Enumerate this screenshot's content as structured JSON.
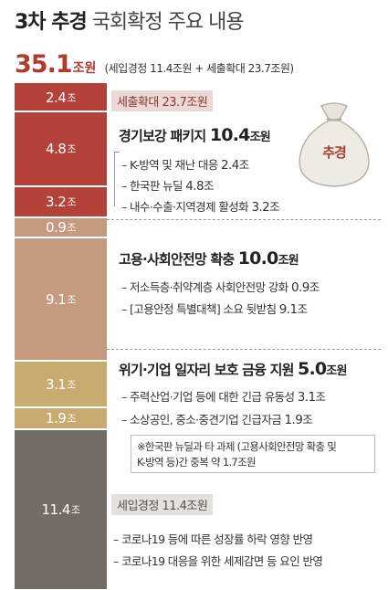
{
  "title": {
    "bold": "3차 추경",
    "light": "국회확정 주요 내용"
  },
  "total": {
    "value_int": "35.",
    "value_dec": "1",
    "unit": "조원",
    "detail": "(세입경정 11.4조원 + 세출확대 23.7조원)"
  },
  "colors": {
    "red": "#b03a2e",
    "tan": "#c9a27c",
    "gold": "#c4a66a",
    "dark": "#6f6b64"
  },
  "bar_segments": [
    {
      "value": "2.4",
      "unit": "조"
    },
    {
      "value": "4.8",
      "unit": "조"
    },
    {
      "value": "3.2",
      "unit": "조"
    },
    {
      "value": "0.9",
      "unit": "조"
    },
    {
      "value": "9.1",
      "unit": "조"
    },
    {
      "value": "3.1",
      "unit": "조"
    },
    {
      "value": "1.9",
      "unit": "조"
    },
    {
      "value": "11.4",
      "unit": "조"
    }
  ],
  "spending": {
    "tag": "세출확대 23.7조원",
    "sack_label": "추경",
    "sack_icon": "money-bag-icon"
  },
  "group1": {
    "heading": "경기보강 패키지",
    "value": "10.4",
    "unit": "조원",
    "items": [
      {
        "text": "K-방역 및 재난 대응",
        "value": "2.4",
        "unit": "조"
      },
      {
        "text": "한국판 뉴딜",
        "value": "4.8",
        "unit": "조"
      },
      {
        "text": "내수·수출·지역경제 활성화",
        "value": "3.2",
        "unit": "조"
      }
    ]
  },
  "group2": {
    "heading": "고용·사회안전망 확충",
    "value": "10.0",
    "unit": "조원",
    "items": [
      {
        "text": "저소득층·취약계층 사회안전망 강화",
        "value": "0.9",
        "unit": "조"
      },
      {
        "text": "[고용안정 특별대책] 소요 뒷받침",
        "value": "9.1",
        "unit": "조"
      }
    ]
  },
  "group3": {
    "heading": "위기·기업 일자리 보호 금융 지원",
    "value": "5.0",
    "unit": "조원",
    "items": [
      {
        "text": "주력산업·기업 등에 대한 긴급 유동성",
        "value": "3.1",
        "unit": "조"
      },
      {
        "text": "소상공인, 중소·중견기업 긴급자금",
        "value": "1.9",
        "unit": "조"
      }
    ]
  },
  "note": {
    "line1": "※한국판 뉴딜과 타 과제 (고용사회안전망 확충 및",
    "line2": "K-방역 등)간 중복 약 ",
    "line2_value": "1.7",
    "line2_unit": "조원"
  },
  "revenue": {
    "tag": "세입경정 11.4조원",
    "items": [
      {
        "text": "코로나19 등에 따른 성장률 하락 영향 반영"
      },
      {
        "text": "코로나19 대응을 위한 세제감면 등 요인 반영"
      }
    ]
  }
}
